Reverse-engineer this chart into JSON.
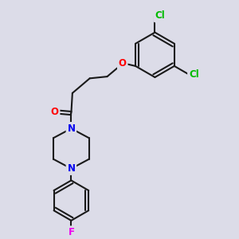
{
  "bg_color": "#dcdce8",
  "bond_color": "#1a1a1a",
  "bond_width": 1.5,
  "atom_colors": {
    "O": "#ff0000",
    "N": "#0000ee",
    "Cl": "#00bb00",
    "F": "#ee00ee",
    "C": "#1a1a1a"
  },
  "font_size": 8.5,
  "figsize": [
    3.0,
    3.0
  ],
  "dpi": 100
}
